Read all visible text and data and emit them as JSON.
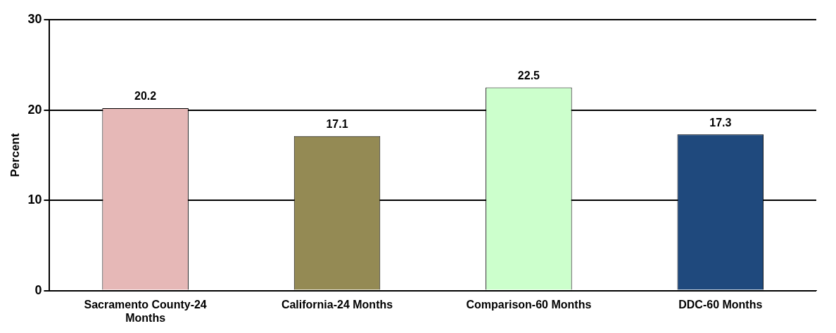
{
  "chart_data": {
    "type": "bar",
    "ylabel": "Percent",
    "categories": [
      "Sacramento County-24 Months",
      "California-24 Months",
      "Comparison-60 Months",
      "DDC-60 Months"
    ],
    "values": [
      20.2,
      17.1,
      22.5,
      17.3
    ],
    "colors": [
      "#e6b8b7",
      "#948a54",
      "#ccffcc",
      "#1f497d"
    ],
    "ylim": [
      0,
      30
    ],
    "yticks": [
      0,
      10,
      20,
      30
    ],
    "grid": "y",
    "data_labels": true
  }
}
